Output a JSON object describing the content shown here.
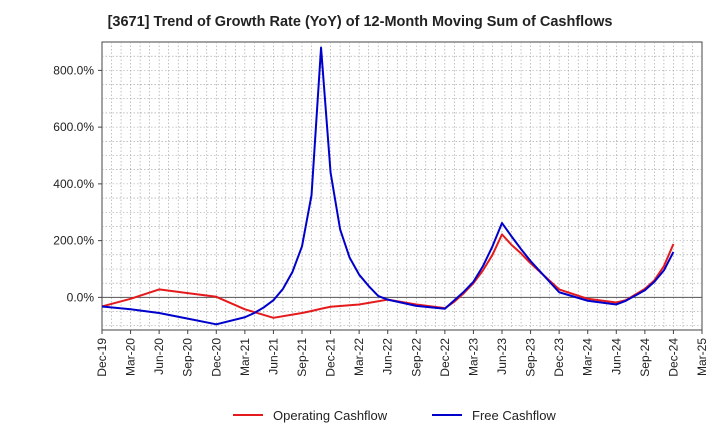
{
  "chart_data": {
    "type": "line",
    "title": "[3671]  Trend of Growth Rate (YoY) of 12-Month Moving Sum of Cashflows",
    "xlabel": "",
    "ylabel": "",
    "ylim": [
      -115,
      900
    ],
    "yticks": [
      0,
      200,
      400,
      600,
      800
    ],
    "ytick_labels": [
      "0.0%",
      "200.0%",
      "400.0%",
      "600.0%",
      "800.0%"
    ],
    "x_tick_labels": [
      "Dec-19",
      "Mar-20",
      "Jun-20",
      "Sep-20",
      "Dec-20",
      "Mar-21",
      "Jun-21",
      "Sep-21",
      "Dec-21",
      "Mar-22",
      "Jun-22",
      "Sep-22",
      "Dec-22",
      "Mar-23",
      "Jun-23",
      "Sep-23",
      "Dec-23",
      "Mar-24",
      "Jun-24",
      "Sep-24",
      "Dec-24",
      "Mar-25"
    ],
    "grid": true,
    "legend_position": "bottom",
    "series": [
      {
        "name": "Operating Cashflow",
        "color": "#e41a1c",
        "points": [
          [
            "Dec-19",
            -32
          ],
          [
            "Mar-20",
            -5
          ],
          [
            "Jun-20",
            28
          ],
          [
            "Sep-20",
            15
          ],
          [
            "Dec-20",
            2
          ],
          [
            "Mar-21",
            -42
          ],
          [
            "Jun-21",
            -72
          ],
          [
            "Sep-21",
            -55
          ],
          [
            "Oct-21",
            -48
          ],
          [
            "Nov-21",
            -40
          ],
          [
            "Dec-21",
            -33
          ],
          [
            "Mar-22",
            -25
          ],
          [
            "Jun-22",
            -8
          ],
          [
            "Sep-22",
            -25
          ],
          [
            "Dec-22",
            -38
          ],
          [
            "Jan-23",
            -15
          ],
          [
            "Feb-23",
            15
          ],
          [
            "Mar-23",
            50
          ],
          [
            "Apr-23",
            95
          ],
          [
            "May-23",
            150
          ],
          [
            "Jun-23",
            222
          ],
          [
            "Jul-23",
            185
          ],
          [
            "Aug-23",
            155
          ],
          [
            "Sep-23",
            120
          ],
          [
            "Dec-23",
            28
          ],
          [
            "Mar-24",
            -5
          ],
          [
            "Jun-24",
            -18
          ],
          [
            "Jul-24",
            -10
          ],
          [
            "Sep-24",
            30
          ],
          [
            "Oct-24",
            60
          ],
          [
            "Nov-24",
            110
          ],
          [
            "Dec-24",
            188
          ]
        ]
      },
      {
        "name": "Free Cashflow",
        "color": "#0000cc",
        "points": [
          [
            "Dec-19",
            -32
          ],
          [
            "Mar-20",
            -42
          ],
          [
            "Jun-20",
            -55
          ],
          [
            "Sep-20",
            -75
          ],
          [
            "Dec-20",
            -95
          ],
          [
            "Mar-21",
            -70
          ],
          [
            "Apr-21",
            -55
          ],
          [
            "May-21",
            -35
          ],
          [
            "Jun-21",
            -10
          ],
          [
            "Jul-21",
            30
          ],
          [
            "Aug-21",
            90
          ],
          [
            "Sep-21",
            180
          ],
          [
            "Oct-21",
            360
          ],
          [
            "Nov-21",
            880
          ],
          [
            "Dec-21",
            440
          ],
          [
            "Jan-22",
            240
          ],
          [
            "Feb-22",
            140
          ],
          [
            "Mar-22",
            80
          ],
          [
            "Apr-22",
            40
          ],
          [
            "May-22",
            5
          ],
          [
            "Jun-22",
            -8
          ],
          [
            "Sep-22",
            -30
          ],
          [
            "Dec-22",
            -40
          ],
          [
            "Jan-23",
            -10
          ],
          [
            "Feb-23",
            20
          ],
          [
            "Mar-23",
            55
          ],
          [
            "Apr-23",
            110
          ],
          [
            "May-23",
            180
          ],
          [
            "Jun-23",
            262
          ],
          [
            "Jul-23",
            215
          ],
          [
            "Aug-23",
            170
          ],
          [
            "Sep-23",
            128
          ],
          [
            "Dec-23",
            18
          ],
          [
            "Mar-24",
            -12
          ],
          [
            "Jun-24",
            -25
          ],
          [
            "Jul-24",
            -12
          ],
          [
            "Sep-24",
            25
          ],
          [
            "Oct-24",
            55
          ],
          [
            "Nov-24",
            95
          ],
          [
            "Dec-24",
            160
          ]
        ]
      }
    ]
  }
}
